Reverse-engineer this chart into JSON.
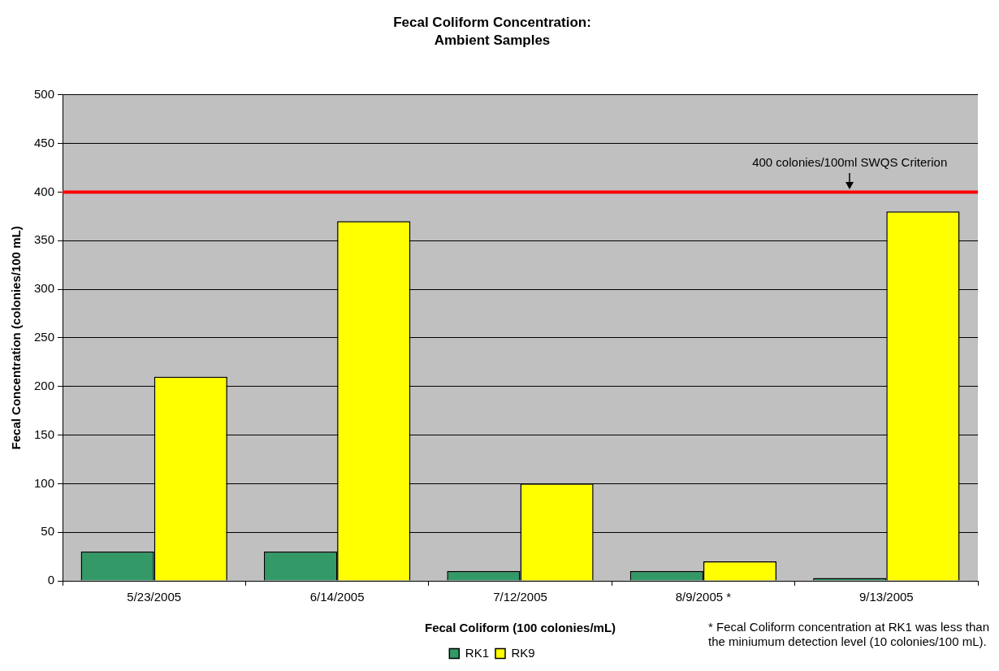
{
  "chart_data": {
    "type": "bar",
    "title": "Fecal Coliform Concentration:",
    "subtitle": "Ambient Samples",
    "xlabel": "Fecal Coliform (100 colonies/mL)",
    "ylabel": "Fecal Concentration (colonies/100 mL)",
    "categories": [
      "5/23/2005",
      "6/14/2005",
      "7/12/2005",
      "8/9/2005 *",
      "9/13/2005"
    ],
    "series": [
      {
        "name": "RK1",
        "color": "#339966",
        "values": [
          30,
          30,
          10,
          10,
          3
        ]
      },
      {
        "name": "RK9",
        "color": "#ffff00",
        "values": [
          210,
          370,
          100,
          20,
          380
        ]
      }
    ],
    "ylim": [
      0,
      500
    ],
    "yticks": [
      0,
      50,
      100,
      150,
      200,
      250,
      300,
      350,
      400,
      450,
      500
    ],
    "grid": "y",
    "legend": "bottom",
    "ref_lines": [
      {
        "axis": "y",
        "value": 400,
        "label": "400 colonies/100ml SWQS Criterion",
        "color": "#ff0000"
      }
    ],
    "annotations": [
      "* Fecal Coliform concentration at RK1 was less than the miniumum detection level (10 colonies/100 mL)."
    ]
  }
}
